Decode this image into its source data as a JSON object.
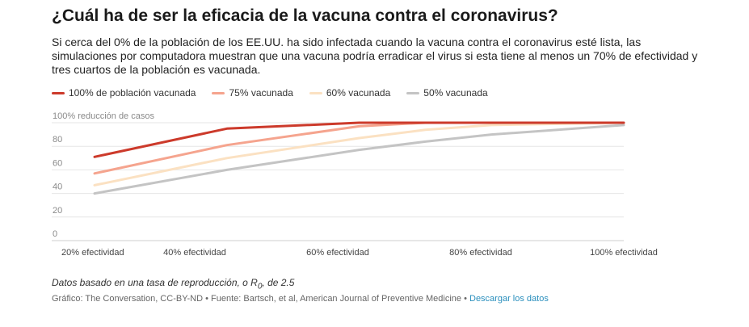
{
  "header": {
    "title": "¿Cuál ha de ser la eficacia de la vacuna contra el coronavirus?",
    "subtitle": "Si cerca del 0% de la población de los EE.UU. ha sido infectada cuando la vacuna contra el coronavirus esté lista, las simulaciones por computadora muestran que una vacuna podría erradicar el virus si esta tiene al menos un 70% de efectividad y tres cuartos de la población es vacunada."
  },
  "footer": {
    "note_prefix": "Datos basado en una tasa de reproducción, o R",
    "note_sub": "0",
    "note_suffix": ", de 2.5",
    "source": "Gráfico: The Conversation, CC-BY-ND • Fuente: Bartsch, et al, American Journal of Preventive Medicine •",
    "download_link": "Descargar los datos"
  },
  "chart_data": {
    "type": "line",
    "title": "",
    "xlabel": "",
    "ylabel": "reducción de casos",
    "y_tick_labels": [
      "0",
      "20",
      "40",
      "60",
      "80",
      "100% reducción de casos"
    ],
    "y_ticks": [
      0,
      20,
      40,
      60,
      80,
      100
    ],
    "ylim": [
      0,
      100
    ],
    "x": [
      20,
      40,
      60,
      80,
      100
    ],
    "x_tick_labels": [
      "20% efectividad",
      "40% efectividad",
      "60% efectividad",
      "80% efectividad",
      "100% efectividad"
    ],
    "xlim": [
      20,
      100
    ],
    "legend_position": "top-left",
    "grid": true,
    "series": [
      {
        "name": "100% de población vacunada",
        "color": "#cc3a2b",
        "x": [
          20,
          40,
          60,
          70,
          80,
          100
        ],
        "values": [
          71,
          95,
          100,
          100,
          100,
          100
        ]
      },
      {
        "name": "75% vacunada",
        "color": "#f5a48e",
        "x": [
          20,
          40,
          60,
          70,
          80,
          100
        ],
        "values": [
          57,
          81,
          97,
          100,
          100,
          100
        ]
      },
      {
        "name": "60% vacunada",
        "color": "#fbe1c2",
        "x": [
          20,
          40,
          60,
          70,
          80,
          100
        ],
        "values": [
          47,
          70,
          87,
          94,
          98,
          100
        ]
      },
      {
        "name": "50% vacunada",
        "color": "#c4c4c4",
        "x": [
          20,
          40,
          60,
          70,
          80,
          100
        ],
        "values": [
          40,
          60,
          77,
          84,
          90,
          98
        ]
      }
    ]
  }
}
